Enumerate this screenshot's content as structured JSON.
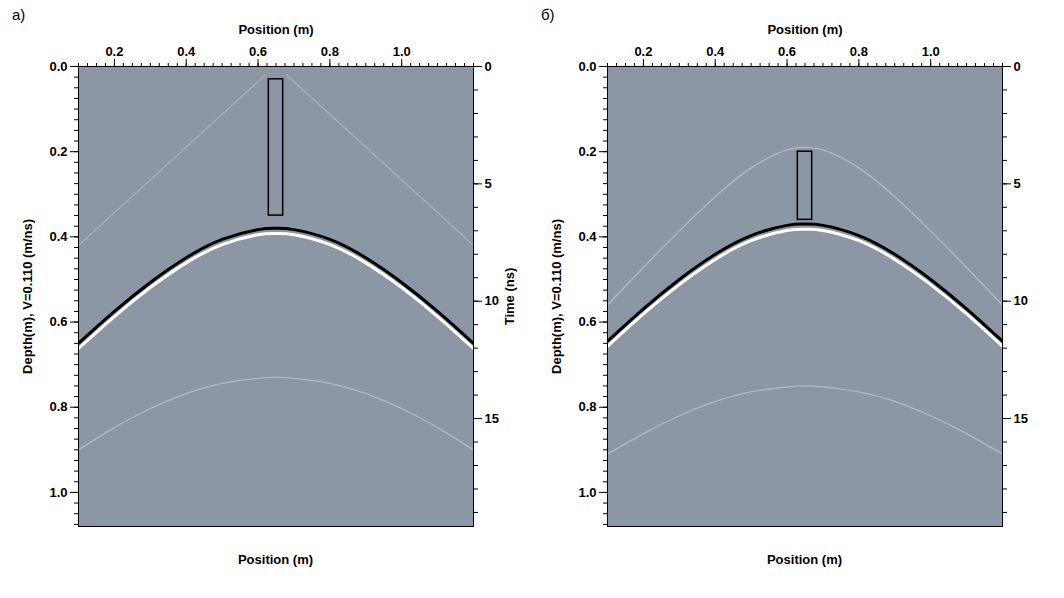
{
  "chart_data": [
    {
      "type": "line",
      "title": "а)",
      "xlabel": "Position (m)",
      "xlabel_bottom": "Position (m)",
      "ylabel": "Depth(m), V=0.110 (m/ns)",
      "y2label": "Time (ns)",
      "xlim": [
        0.1,
        1.2
      ],
      "xticks": [
        0.2,
        0.4,
        0.6,
        0.8,
        {
          "value": 1,
          "label": "1.0"
        }
      ],
      "xticks_minor": [
        0.1,
        0.125,
        0.15,
        0.175,
        0.2,
        0.225,
        0.25,
        0.275,
        0.3,
        0.325,
        0.35,
        0.375,
        0.4,
        0.425,
        0.45,
        0.475,
        0.5,
        0.525,
        0.55,
        0.575,
        0.6,
        0.625,
        0.65,
        0.675,
        0.7,
        0.725,
        0.75,
        0.775,
        0.8,
        0.825,
        0.85,
        0.875,
        0.9,
        0.925,
        0.95,
        0.975,
        1,
        1.025,
        1.05,
        1.075,
        1.1,
        1.125,
        1.15,
        1.175,
        1.2
      ],
      "ylim": [
        0,
        1.08
      ],
      "yticks": [
        {
          "value": 0,
          "label": "0.0"
        },
        0.2,
        0.4,
        0.6,
        0.8,
        {
          "value": 1,
          "label": "1.0"
        }
      ],
      "yticks_minor": [
        0,
        0.025,
        0.05,
        0.075,
        0.1,
        0.125,
        0.15,
        0.175,
        0.2,
        0.225,
        0.25,
        0.275,
        0.3,
        0.325,
        0.35,
        0.375,
        0.4,
        0.425,
        0.45,
        0.475,
        0.5,
        0.525,
        0.55,
        0.575,
        0.6,
        0.625,
        0.65,
        0.675,
        0.7,
        0.725,
        0.75,
        0.775,
        0.8,
        0.825,
        0.85,
        0.875,
        0.9,
        0.925,
        0.95,
        0.975,
        1,
        1.025,
        1.05,
        1.075
      ],
      "y2lim": [
        0,
        19.6
      ],
      "y2ticks": [
        0,
        5,
        10,
        15
      ],
      "y2ticks_minor": [
        0,
        1,
        2,
        3,
        4,
        5,
        6,
        7,
        8,
        9,
        10,
        11,
        12,
        13,
        14,
        15,
        16,
        17,
        18,
        19
      ],
      "series": [
        {
          "color": "#a9b1bd",
          "line_style": "thin",
          "x": [
            0.1,
            0.62
          ],
          "values": [
            0.42,
            0.02
          ]
        },
        {
          "color": "#a9b1bd",
          "line_style": "thin",
          "x": [
            0.68,
            1.2
          ],
          "values": [
            0.02,
            0.42
          ]
        },
        {
          "color": "#b4bac4",
          "line_style": "thin",
          "x": [
            0.1,
            0.2,
            0.3,
            0.4,
            0.5,
            0.6,
            0.65,
            0.7,
            0.8,
            0.9,
            1.0,
            1.1,
            1.2
          ],
          "values": [
            0.9,
            0.848,
            0.803,
            0.768,
            0.744,
            0.732,
            0.73,
            0.732,
            0.744,
            0.768,
            0.803,
            0.848,
            0.9
          ]
        },
        {
          "color": "#000000",
          "line_style": "thick",
          "x": [
            0.1,
            0.2,
            0.3,
            0.4,
            0.5,
            0.6,
            0.65,
            0.7,
            0.8,
            0.9,
            1.0,
            1.1,
            1.2
          ],
          "values": [
            0.65,
            0.575,
            0.507,
            0.449,
            0.406,
            0.383,
            0.38,
            0.383,
            0.406,
            0.449,
            0.507,
            0.575,
            0.65
          ]
        },
        {
          "color": "#ffffff",
          "line_style": "thick",
          "x": [
            0.1,
            0.2,
            0.3,
            0.4,
            0.5,
            0.6,
            0.65,
            0.7,
            0.8,
            0.9,
            1.0,
            1.1,
            1.2
          ],
          "values": [
            0.662,
            0.587,
            0.519,
            0.461,
            0.418,
            0.395,
            0.392,
            0.395,
            0.418,
            0.461,
            0.519,
            0.587,
            0.662
          ]
        }
      ],
      "rectangle": {
        "x": [
          0.63,
          0.67
        ],
        "y": [
          0.03,
          0.35
        ]
      }
    },
    {
      "type": "line",
      "title": "б)",
      "xlabel": "Position (m)",
      "xlabel_bottom": "Position (m)",
      "ylabel": "Depth(m), V=0.110 (m/ns)",
      "xlim": [
        0.1,
        1.2
      ],
      "xticks": [
        0.2,
        0.4,
        0.6,
        0.8,
        {
          "value": 1,
          "label": "1.0"
        }
      ],
      "xticks_minor": [
        0.1,
        0.125,
        0.15,
        0.175,
        0.2,
        0.225,
        0.25,
        0.275,
        0.3,
        0.325,
        0.35,
        0.375,
        0.4,
        0.425,
        0.45,
        0.475,
        0.5,
        0.525,
        0.55,
        0.575,
        0.6,
        0.625,
        0.65,
        0.675,
        0.7,
        0.725,
        0.75,
        0.775,
        0.8,
        0.825,
        0.85,
        0.875,
        0.9,
        0.925,
        0.95,
        0.975,
        1,
        1.025,
        1.05,
        1.075,
        1.1,
        1.125,
        1.15,
        1.175,
        1.2
      ],
      "ylim": [
        0,
        1.08
      ],
      "yticks": [
        {
          "value": 0,
          "label": "0.0"
        },
        0.2,
        0.4,
        0.6,
        0.8,
        {
          "value": 1,
          "label": "1.0"
        }
      ],
      "yticks_minor": [
        0,
        0.025,
        0.05,
        0.075,
        0.1,
        0.125,
        0.15,
        0.175,
        0.2,
        0.225,
        0.25,
        0.275,
        0.3,
        0.325,
        0.35,
        0.375,
        0.4,
        0.425,
        0.45,
        0.475,
        0.5,
        0.525,
        0.55,
        0.575,
        0.6,
        0.625,
        0.65,
        0.675,
        0.7,
        0.725,
        0.75,
        0.775,
        0.8,
        0.825,
        0.85,
        0.875,
        0.9,
        0.925,
        0.95,
        0.975,
        1,
        1.025,
        1.05,
        1.075
      ],
      "y2lim": [
        0,
        19.6
      ],
      "y2ticks": [
        0,
        5,
        10,
        15
      ],
      "y2ticks_minor": [
        0,
        1,
        2,
        3,
        4,
        5,
        6,
        7,
        8,
        9,
        10,
        11,
        12,
        13,
        14,
        15,
        16,
        17,
        18,
        19
      ],
      "series": [
        {
          "color": "#b4bac4",
          "line_style": "thin",
          "x": [
            0.1,
            0.2,
            0.3,
            0.4,
            0.5,
            0.6,
            0.65,
            0.7,
            0.8,
            0.9,
            1.0,
            1.1,
            1.2
          ],
          "values": [
            0.56,
            0.472,
            0.386,
            0.306,
            0.238,
            0.196,
            0.19,
            0.196,
            0.238,
            0.306,
            0.386,
            0.472,
            0.56
          ]
        },
        {
          "color": "#b4bac4",
          "line_style": "thin",
          "x": [
            0.1,
            0.2,
            0.3,
            0.4,
            0.5,
            0.6,
            0.65,
            0.7,
            0.8,
            0.9,
            1.0,
            1.1,
            1.2
          ],
          "values": [
            0.91,
            0.862,
            0.82,
            0.786,
            0.764,
            0.752,
            0.75,
            0.752,
            0.764,
            0.786,
            0.82,
            0.862,
            0.91
          ]
        },
        {
          "color": "#000000",
          "line_style": "thick",
          "x": [
            0.1,
            0.2,
            0.3,
            0.4,
            0.5,
            0.6,
            0.65,
            0.7,
            0.8,
            0.9,
            1.0,
            1.1,
            1.2
          ],
          "values": [
            0.645,
            0.569,
            0.5,
            0.441,
            0.397,
            0.373,
            0.37,
            0.373,
            0.397,
            0.441,
            0.5,
            0.569,
            0.645
          ]
        },
        {
          "color": "#ffffff",
          "line_style": "thick",
          "x": [
            0.1,
            0.2,
            0.3,
            0.4,
            0.5,
            0.6,
            0.65,
            0.7,
            0.8,
            0.9,
            1.0,
            1.1,
            1.2
          ],
          "values": [
            0.657,
            0.581,
            0.512,
            0.453,
            0.409,
            0.385,
            0.382,
            0.385,
            0.409,
            0.453,
            0.512,
            0.581,
            0.657
          ]
        }
      ],
      "rectangle": {
        "x": [
          0.63,
          0.67
        ],
        "y": [
          0.2,
          0.36
        ]
      }
    }
  ]
}
